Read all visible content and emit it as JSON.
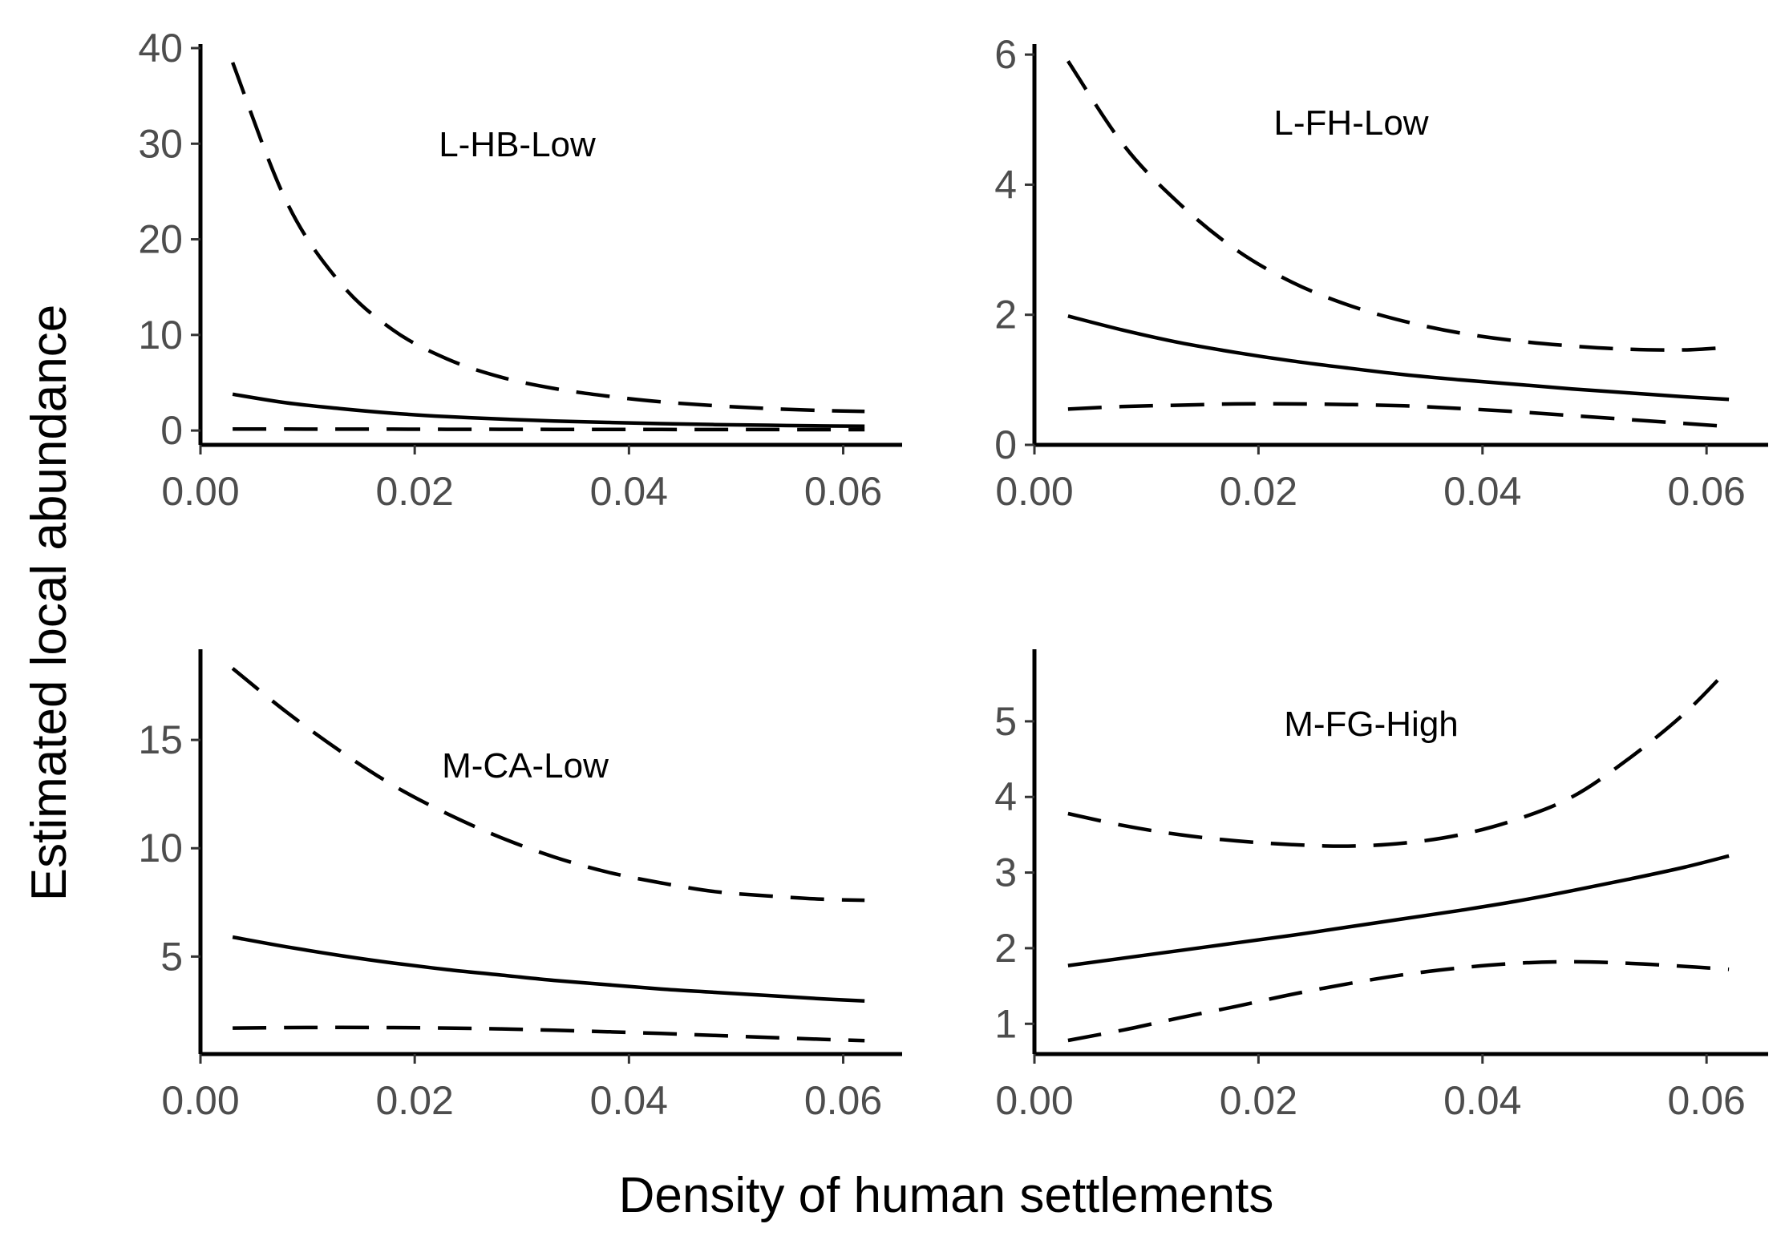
{
  "xlabel": "Density of human settlements",
  "ylabel": "Estimated local abundance",
  "chart_data": [
    {
      "type": "line",
      "panel": "L-HB-Low",
      "xlim": [
        0,
        0.0655
      ],
      "ylim": [
        -1.5,
        40
      ],
      "xticks": [
        0,
        0.02,
        0.04,
        0.06
      ],
      "xtick_labels": [
        "0.00",
        "0.02",
        "0.04",
        "0.06"
      ],
      "yticks": [
        0,
        10,
        20,
        30,
        40
      ],
      "ytick_labels": [
        "0",
        "10",
        "20",
        "30",
        "40"
      ],
      "x": [
        0.003,
        0.008,
        0.013,
        0.018,
        0.023,
        0.028,
        0.033,
        0.038,
        0.043,
        0.048,
        0.053,
        0.058,
        0.062
      ],
      "series": [
        {
          "role": "estimate",
          "values": [
            3.8,
            2.9,
            2.3,
            1.8,
            1.45,
            1.2,
            1.0,
            0.85,
            0.72,
            0.62,
            0.55,
            0.48,
            0.45
          ]
        },
        {
          "role": "upper",
          "values": [
            38.5,
            24.0,
            15.5,
            10.5,
            7.5,
            5.6,
            4.4,
            3.6,
            3.0,
            2.6,
            2.3,
            2.1,
            2.0
          ]
        },
        {
          "role": "lower",
          "values": [
            0.15,
            0.15,
            0.14,
            0.14,
            0.13,
            0.13,
            0.12,
            0.12,
            0.11,
            0.1,
            0.1,
            0.09,
            0.09
          ]
        }
      ]
    },
    {
      "type": "line",
      "panel": "L-FH-Low",
      "xlim": [
        0,
        0.0655
      ],
      "ylim": [
        0,
        6.1
      ],
      "xticks": [
        0,
        0.02,
        0.04,
        0.06
      ],
      "xtick_labels": [
        "0.00",
        "0.02",
        "0.04",
        "0.06"
      ],
      "yticks": [
        0,
        2,
        4,
        6
      ],
      "ytick_labels": [
        "0",
        "2",
        "4",
        "6"
      ],
      "x": [
        0.003,
        0.008,
        0.013,
        0.018,
        0.023,
        0.028,
        0.033,
        0.038,
        0.043,
        0.048,
        0.053,
        0.058,
        0.062
      ],
      "series": [
        {
          "role": "estimate",
          "values": [
            1.98,
            1.76,
            1.57,
            1.42,
            1.29,
            1.18,
            1.08,
            1.0,
            0.93,
            0.86,
            0.8,
            0.74,
            0.7
          ]
        },
        {
          "role": "upper",
          "values": [
            5.9,
            4.6,
            3.7,
            3.0,
            2.5,
            2.15,
            1.9,
            1.72,
            1.6,
            1.52,
            1.47,
            1.46,
            1.5
          ]
        },
        {
          "role": "lower",
          "values": [
            0.55,
            0.59,
            0.61,
            0.63,
            0.63,
            0.62,
            0.6,
            0.56,
            0.51,
            0.45,
            0.39,
            0.33,
            0.28
          ]
        }
      ]
    },
    {
      "type": "line",
      "panel": "M-CA-Low",
      "xlim": [
        0,
        0.0655
      ],
      "ylim": [
        0.5,
        19
      ],
      "xticks": [
        0,
        0.02,
        0.04,
        0.06
      ],
      "xtick_labels": [
        "0.00",
        "0.02",
        "0.04",
        "0.06"
      ],
      "yticks": [
        5,
        10,
        15
      ],
      "ytick_labels": [
        "5",
        "10",
        "15"
      ],
      "x": [
        0.003,
        0.008,
        0.013,
        0.018,
        0.023,
        0.028,
        0.033,
        0.038,
        0.043,
        0.048,
        0.053,
        0.058,
        0.062
      ],
      "series": [
        {
          "role": "estimate",
          "values": [
            5.9,
            5.45,
            5.05,
            4.7,
            4.4,
            4.15,
            3.9,
            3.7,
            3.5,
            3.35,
            3.2,
            3.05,
            2.95
          ]
        },
        {
          "role": "upper",
          "values": [
            18.3,
            16.3,
            14.5,
            12.9,
            11.6,
            10.5,
            9.6,
            8.9,
            8.4,
            8.0,
            7.8,
            7.65,
            7.6
          ]
        },
        {
          "role": "lower",
          "values": [
            1.7,
            1.72,
            1.73,
            1.72,
            1.7,
            1.66,
            1.6,
            1.53,
            1.45,
            1.36,
            1.27,
            1.18,
            1.12
          ]
        }
      ]
    },
    {
      "type": "line",
      "panel": "M-FG-High",
      "xlim": [
        0,
        0.0655
      ],
      "ylim": [
        0.6,
        5.9
      ],
      "xticks": [
        0,
        0.02,
        0.04,
        0.06
      ],
      "xtick_labels": [
        "0.00",
        "0.02",
        "0.04",
        "0.06"
      ],
      "yticks": [
        1,
        2,
        3,
        4,
        5
      ],
      "ytick_labels": [
        "1",
        "2",
        "3",
        "4",
        "5"
      ],
      "x": [
        0.003,
        0.008,
        0.013,
        0.018,
        0.023,
        0.028,
        0.033,
        0.038,
        0.043,
        0.048,
        0.053,
        0.058,
        0.062
      ],
      "series": [
        {
          "role": "estimate",
          "values": [
            1.77,
            1.87,
            1.97,
            2.07,
            2.17,
            2.28,
            2.39,
            2.5,
            2.62,
            2.76,
            2.91,
            3.07,
            3.22
          ]
        },
        {
          "role": "upper",
          "values": [
            3.78,
            3.62,
            3.5,
            3.42,
            3.37,
            3.35,
            3.39,
            3.5,
            3.7,
            4.0,
            4.5,
            5.1,
            5.7
          ]
        },
        {
          "role": "lower",
          "values": [
            0.78,
            0.92,
            1.08,
            1.23,
            1.39,
            1.53,
            1.65,
            1.74,
            1.8,
            1.82,
            1.8,
            1.76,
            1.72
          ]
        }
      ]
    }
  ]
}
